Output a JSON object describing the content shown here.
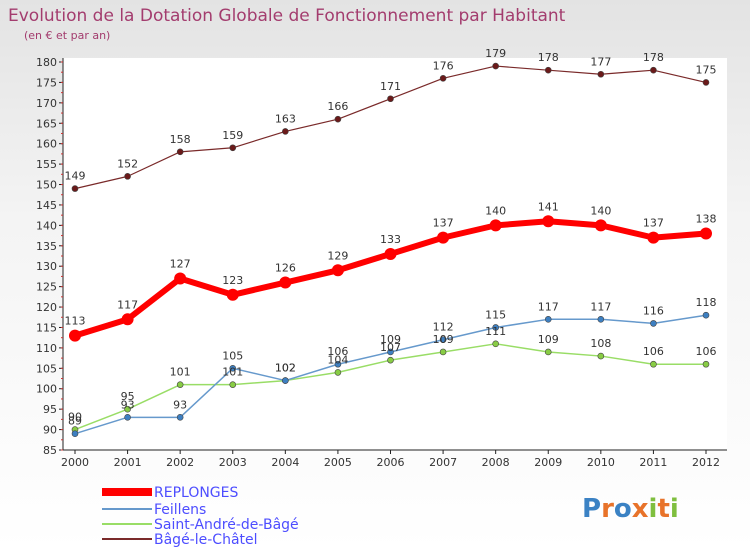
{
  "title": "Evolution de la Dotation Globale de Fonctionnement par Habitant",
  "subtitle": "(en € et par an)",
  "logo": {
    "text": "Proxiti",
    "colors": [
      "#3b82c4",
      "#e8732a",
      "#3b82c4",
      "#e8732a",
      "#7fbf3f",
      "#e8732a",
      "#7fbf3f"
    ]
  },
  "chart_data": {
    "type": "line",
    "title": "Evolution de la Dotation Globale de Fonctionnement par Habitant",
    "subtitle": "(en € et par an)",
    "xlabel": "",
    "ylabel": "",
    "x": [
      "2000",
      "2001",
      "2002",
      "2003",
      "2004",
      "2005",
      "2006",
      "2007",
      "2008",
      "2009",
      "2010",
      "2011",
      "2012"
    ],
    "ylim": [
      85,
      180
    ],
    "yticks": [
      85,
      90,
      95,
      100,
      105,
      110,
      115,
      120,
      125,
      130,
      135,
      140,
      145,
      150,
      155,
      160,
      165,
      170,
      175,
      180
    ],
    "grid": false,
    "legend_position": "bottom-left",
    "series": [
      {
        "name": "REPLONGES",
        "color": "#ff0000",
        "values": [
          113,
          117,
          127,
          123,
          126,
          129,
          133,
          137,
          140,
          141,
          140,
          137,
          138
        ]
      },
      {
        "name": "Feillens",
        "color": "#6699cc",
        "values": [
          89,
          93,
          93,
          105,
          102,
          106,
          109,
          112,
          115,
          117,
          117,
          116,
          118
        ]
      },
      {
        "name": "Saint-André-de-Bâgé",
        "color": "#99dd66",
        "values": [
          90,
          95,
          101,
          101,
          102,
          104,
          107,
          109,
          111,
          109,
          108,
          106,
          106
        ]
      },
      {
        "name": "Bâgé-le-Châtel",
        "color": "#7a2a2a",
        "values": [
          149,
          152,
          158,
          159,
          163,
          166,
          171,
          176,
          179,
          178,
          177,
          178,
          175
        ]
      }
    ]
  }
}
